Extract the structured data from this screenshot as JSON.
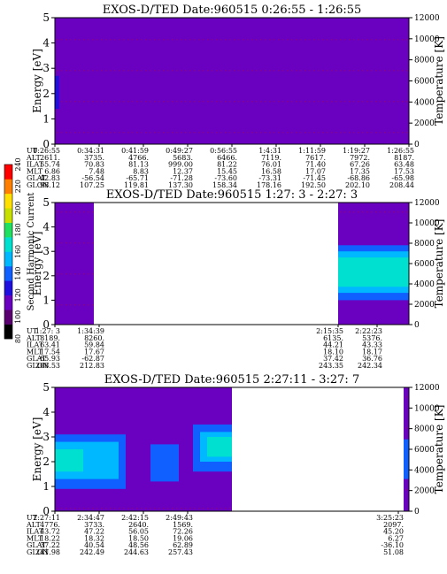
{
  "chart_data": [
    {
      "type": "heatmap",
      "title": "EXOS-D/TED   Date:960515  0:26:55 - 1:26:55",
      "ylabel": "Energy [eV]",
      "y2label": "Temperature [K]",
      "ylim": [
        0,
        5
      ],
      "yticks": [
        "0",
        "1",
        "2",
        "3",
        "4",
        "5"
      ],
      "y2lim": [
        0,
        12000
      ],
      "y2ticks": [
        "0",
        "2000",
        "4000",
        "6000",
        "8000",
        "10000",
        "12000"
      ],
      "data_segments": [
        [
          0,
          1
        ]
      ],
      "bands": [
        {
          "x0": 0,
          "x1": 0.012,
          "y0": 1.4,
          "y1": 2.7,
          "level": 125
        }
      ],
      "background_level": 108,
      "orbit_labels": [
        "UT",
        "ALT",
        "ILAT",
        "MLT",
        "GLAT",
        "GLON"
      ],
      "orbit_columns": [
        {
          "x": 0.0,
          "values": [
            "0:26:55",
            "2611.",
            "55.74",
            "6.86",
            "-42.83",
            "98.12"
          ]
        },
        {
          "x": 0.125,
          "values": [
            "0:34:31",
            "3735.",
            "70.83",
            "7.48",
            "-56.54",
            "107.25"
          ]
        },
        {
          "x": 0.25,
          "values": [
            "0:41:59",
            "4766.",
            "81.13",
            "8.83",
            "-65.71",
            "119.81"
          ]
        },
        {
          "x": 0.375,
          "values": [
            "0:49:27",
            "5683.",
            "999.00",
            "12.37",
            "-71.28",
            "137.30"
          ]
        },
        {
          "x": 0.5,
          "values": [
            "0:56:55",
            "6466.",
            "81.22",
            "15.45",
            "-73.60",
            "158.34"
          ]
        },
        {
          "x": 0.625,
          "values": [
            "1:4:31",
            "7119.",
            "76.01",
            "16.58",
            "-73.31",
            "178.16"
          ]
        },
        {
          "x": 0.75,
          "values": [
            "1:11:59",
            "7617.",
            "71.40",
            "17.07",
            "-71.45",
            "192.50"
          ]
        },
        {
          "x": 0.875,
          "values": [
            "1:19:27",
            "7972.",
            "67.26",
            "17.35",
            "-68.86",
            "202.10"
          ]
        },
        {
          "x": 1.0,
          "values": [
            "1:26:55",
            "8187.",
            "63.48",
            "17.53",
            "-65.98",
            "208.44"
          ]
        }
      ]
    },
    {
      "type": "heatmap",
      "title": "EXOS-D/TED   Date:960515  1:27: 3 - 2:27: 3",
      "ylabel": "Energy [eV]",
      "y2label": "Temperature [K]",
      "ylim": [
        0,
        5
      ],
      "yticks": [
        "0",
        "1",
        "2",
        "3",
        "4",
        "5"
      ],
      "y2lim": [
        0,
        12000
      ],
      "y2ticks": [
        "0",
        "2000",
        "4000",
        "6000",
        "8000",
        "10000",
        "12000"
      ],
      "data_segments": [
        [
          0,
          0.11
        ],
        [
          0.8,
          1
        ]
      ],
      "bands": [
        {
          "x0": 0.8,
          "x1": 1,
          "y0": 0.45,
          "y1": 3.6,
          "level": 118
        },
        {
          "x0": 0.8,
          "x1": 1,
          "y0": 1.0,
          "y1": 3.25,
          "level": 135
        },
        {
          "x0": 0.8,
          "x1": 1,
          "y0": 1.3,
          "y1": 3.0,
          "level": 150
        },
        {
          "x0": 0.8,
          "x1": 1,
          "y0": 1.55,
          "y1": 2.75,
          "level": 160
        },
        {
          "x0": 0.8,
          "x1": 1,
          "y0": 1.8,
          "y1": 2.5,
          "level": 168
        }
      ],
      "background_level": 108,
      "orbit_labels": [
        "UT",
        "ALT",
        "ILAT",
        "MLT",
        "GLAT",
        "GLON"
      ],
      "orbit_columns": [
        {
          "x": 0.0,
          "values": [
            "1:27: 3",
            "8189.",
            "63.41",
            "17.54",
            "-65.93",
            "208.53"
          ]
        },
        {
          "x": 0.125,
          "values": [
            "1:34:39",
            "8260.",
            "59.84",
            "17.67",
            "-62.87",
            "212.83"
          ]
        },
        {
          "x": 0.8,
          "values": [
            "2:15:35",
            "6135.",
            "44.21",
            "18.10",
            "37.42",
            "243.35"
          ]
        },
        {
          "x": 0.91,
          "values": [
            "2:22:23",
            "5376.",
            "43.33",
            "18.17",
            "36.76",
            "242.34"
          ]
        }
      ]
    },
    {
      "type": "heatmap",
      "title": "EXOS-D/TED   Date:960515  2:27:11 - 3:27: 7",
      "ylabel": "Energy [eV]",
      "y2label": "Temperature [K]",
      "ylim": [
        0,
        5
      ],
      "yticks": [
        "0",
        "1",
        "2",
        "3",
        "4",
        "5"
      ],
      "y2lim": [
        0,
        12000
      ],
      "y2ticks": [
        "0",
        "2000",
        "4000",
        "6000",
        "8000",
        "10000",
        "12000"
      ],
      "data_segments": [
        [
          0,
          0.5
        ],
        [
          0.985,
          1
        ]
      ],
      "bands": [
        {
          "x0": 0,
          "x1": 0.5,
          "y0": 0.3,
          "y1": 3.9,
          "level": 118
        },
        {
          "x0": 0,
          "x1": 0.2,
          "y0": 0.9,
          "y1": 3.1,
          "level": 135
        },
        {
          "x0": 0,
          "x1": 0.18,
          "y0": 1.3,
          "y1": 2.8,
          "level": 150
        },
        {
          "x0": 0,
          "x1": 0.08,
          "y0": 1.6,
          "y1": 2.5,
          "level": 162
        },
        {
          "x0": 0.27,
          "x1": 0.35,
          "y0": 1.2,
          "y1": 2.7,
          "level": 135
        },
        {
          "x0": 0.39,
          "x1": 0.5,
          "y0": 1.6,
          "y1": 3.5,
          "level": 140
        },
        {
          "x0": 0.41,
          "x1": 0.5,
          "y0": 2.0,
          "y1": 3.2,
          "level": 158
        },
        {
          "x0": 0.43,
          "x1": 0.5,
          "y0": 2.2,
          "y1": 3.0,
          "level": 168
        },
        {
          "x0": 0.985,
          "x1": 1,
          "y0": 1.3,
          "y1": 2.9,
          "level": 140
        }
      ],
      "background_level": 108,
      "orbit_labels": [
        "UT",
        "ALT",
        "ILAT",
        "MLT",
        "GLAT",
        "GLON"
      ],
      "orbit_columns": [
        {
          "x": 0.0,
          "values": [
            "2:27:11",
            "4776.",
            "43.72",
            "18.22",
            "37.22",
            "241.98"
          ]
        },
        {
          "x": 0.125,
          "values": [
            "2:34:47",
            "3733.",
            "47.22",
            "18.32",
            "40.54",
            "242.49"
          ]
        },
        {
          "x": 0.25,
          "values": [
            "2:42:15",
            "2640.",
            "56.05",
            "18.50",
            "48.56",
            "244.63"
          ]
        },
        {
          "x": 0.375,
          "values": [
            "2:49:43",
            "1569.",
            "72.26",
            "19.06",
            "62.89",
            "257.43"
          ]
        },
        {
          "x": 0.97,
          "values": [
            "3:25:23",
            "2097.",
            "45.20",
            "6.27",
            "-36.10",
            "51.08"
          ]
        }
      ]
    }
  ],
  "colorbar": {
    "label": "Second Harmonic Current",
    "range": [
      80,
      240
    ],
    "ticks": [
      "80",
      "100",
      "120",
      "140",
      "160",
      "180",
      "200",
      "220",
      "240"
    ],
    "colors": [
      "#000000",
      "#5a0070",
      "#6a00c0",
      "#2010e0",
      "#1060ff",
      "#00b8ff",
      "#00e0d0",
      "#20e060",
      "#c8e000",
      "#ffe000",
      "#ff8000",
      "#ff0000"
    ]
  }
}
